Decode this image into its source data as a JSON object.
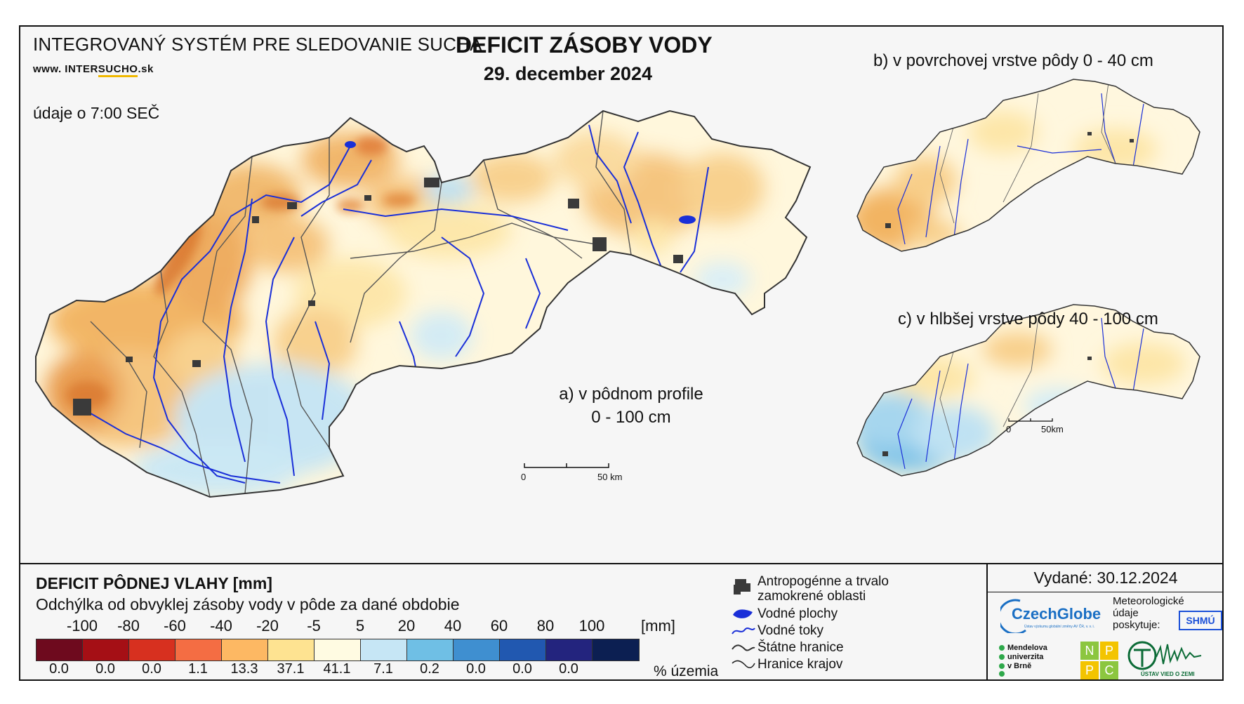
{
  "header": {
    "system_title": "INTEGROVANÝ SYSTÉM PRE SLEDOVANIE SUCHA",
    "website_prefix": "www. INTER",
    "website_underlined": "SUCHO",
    "website_suffix": ".sk",
    "observation_time": "údaje o 7:00 SEČ",
    "main_title": "DEFICIT ZÁSOBY VODY",
    "main_date": "29. december 2024"
  },
  "maps": {
    "a_label_line1": "a) v pôdnom profile",
    "a_label_line2": "0 - 100 cm",
    "b_label": "b) v povrchovej vrstve pôdy 0 - 40 cm",
    "c_label": "c) v hlbšej vrstve pôdy 40 - 100 cm"
  },
  "scalebar_main": {
    "start": "0",
    "end": "50 km"
  },
  "scalebar_small": {
    "start": "0",
    "end": "50km"
  },
  "legend": {
    "title": "DEFICIT PÔDNEJ VLAHY [mm]",
    "subtitle": "Odchýlka od obvyklej zásoby vody v pôde za dané obdobie",
    "unit": "[mm]",
    "tick_labels": [
      "-100",
      "-80",
      "-60",
      "-40",
      "-20",
      "-5",
      "5",
      "20",
      "40",
      "60",
      "80",
      "100"
    ],
    "classes": [
      {
        "color": "#6e0a1e",
        "percent": "0.0"
      },
      {
        "color": "#a50f15",
        "percent": "0.0"
      },
      {
        "color": "#d7301f",
        "percent": "0.0"
      },
      {
        "color": "#f46d43",
        "percent": "1.1"
      },
      {
        "color": "#fdb863",
        "percent": "13.3"
      },
      {
        "color": "#fee391",
        "percent": "37.1"
      },
      {
        "color": "#fffbe2",
        "percent": "41.1"
      },
      {
        "color": "#c6e6f5",
        "percent": "7.1"
      },
      {
        "color": "#6fbfe5",
        "percent": "0.2"
      },
      {
        "color": "#3f8fd0",
        "percent": "0.0"
      },
      {
        "color": "#2158b0",
        "percent": "0.0"
      },
      {
        "color": "#23247e",
        "percent": "0.0"
      },
      {
        "color": "#0c1f52",
        "percent": ""
      }
    ],
    "percent_label": "% územia",
    "symbols": {
      "urban_line1": "Antropogénne a trvalo",
      "urban_line2": "zamokrené oblasti",
      "water_bodies": "Vodné plochy",
      "rivers": "Vodné toky",
      "state_border": "Štátne hranice",
      "region_border": "Hranice krajov"
    }
  },
  "issuance": {
    "issued": "Vydané: 30.12.2024",
    "czechglobe": "CzechGlobe",
    "czechglobe_sub": "Ústav výzkumu globální změny AV ČR, v. v. i.",
    "meteo_line1": "Meteorologické",
    "meteo_line2": "údaje",
    "meteo_line3": "poskytuje:",
    "shmu": "SHMÚ",
    "mendel_line1": "Mendelova",
    "mendel_line2": "univerzita",
    "mendel_line3": "v Brně",
    "nppc": [
      "N",
      "P",
      "P",
      "C"
    ],
    "uvz": "ÚSTAV VIED O ZEMI"
  },
  "colors": {
    "dry_dark": "#e08a3c",
    "dry": "#f5c27a",
    "dry_light": "#fde6a8",
    "neutral": "#fff9e6",
    "wet": "#c4e4f4",
    "river": "#1a2fd8",
    "urban": "#3a3a3a"
  }
}
